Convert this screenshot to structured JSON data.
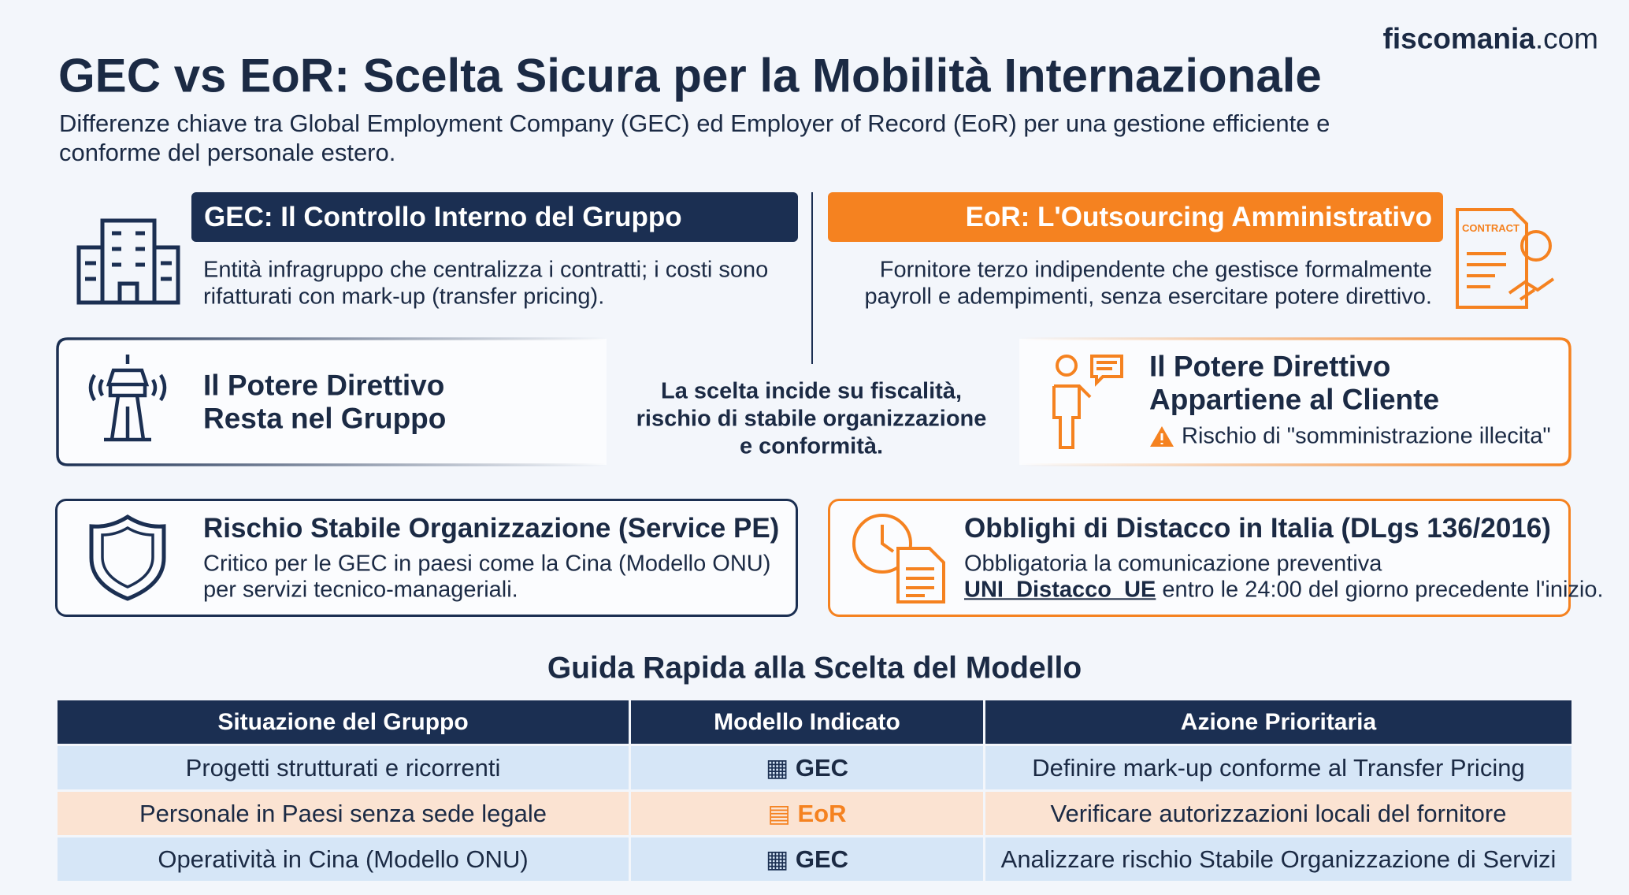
{
  "header": {
    "brand_bold": "fiscomania",
    "brand_rest": ".com",
    "title": "GEC vs EoR: Scelta Sicura per la Mobilità Internazionale",
    "subtitle_lines": [
      "Differenze chiave tra Global Employment Company (GEC) ed Employer of Record (EoR) per una gestione efficiente e",
      "conforme del personale estero."
    ]
  },
  "gec": {
    "title": "GEC: Il Controllo Interno del Gruppo",
    "description_lines": [
      "Entità infragruppo che centralizza i contratti; i costi sono",
      "rifatturati con mark-up (transfer pricing)."
    ]
  },
  "eor": {
    "title": "EoR: L'Outsourcing Amministrativo",
    "icon_label": "CONTRACT",
    "description_lines": [
      "Fornitore terzo indipendente che gestisce formalmente",
      "payroll e adempimenti, senza esercitare potere direttivo."
    ]
  },
  "potere_gec": {
    "title_lines": [
      "Il Potere Direttivo",
      "Resta nel Gruppo"
    ]
  },
  "center_note": {
    "lines": [
      "La scelta incide su fiscalità,",
      "rischio di stabile organizzazione",
      "e conformità."
    ]
  },
  "potere_eor": {
    "title_lines": [
      "Il Potere Direttivo",
      "Appartiene al Cliente"
    ],
    "warning": "Rischio di \"somministrazione illecita\""
  },
  "rischio_pe": {
    "title": "Rischio Stabile Organizzazione (Service PE)",
    "text_lines": [
      "Critico per le GEC in paesi come la Cina (Modello ONU)",
      "per servizi tecnico-manageriali."
    ]
  },
  "distacco": {
    "title": "Obblighi di Distacco in Italia (DLgs 136/2016)",
    "text_line_1": "Obbligatoria la comunicazione preventiva",
    "text_line_2_bold": "UNI_Distacco_UE",
    "text_line_2_rest": " entro le 24:00 del giorno precedente l'inizio."
  },
  "table": {
    "title": "Guida Rapida alla Scelta del Modello",
    "headers": [
      "Situazione del Gruppo",
      "Modello Indicato",
      "Azione Prioritaria"
    ],
    "rows": [
      [
        "Progetti strutturati e ricorrenti",
        "GEC",
        "Definire mark-up conforme al Transfer Pricing"
      ],
      [
        "Personale in Paesi senza sede legale",
        "EoR",
        "Verificare autorizzazioni locali del fornitore"
      ],
      [
        "Operatività in Cina (Modello ONU)",
        "GEC",
        "Analizzare rischio Stabile Organizzazione di Servizi"
      ]
    ]
  }
}
